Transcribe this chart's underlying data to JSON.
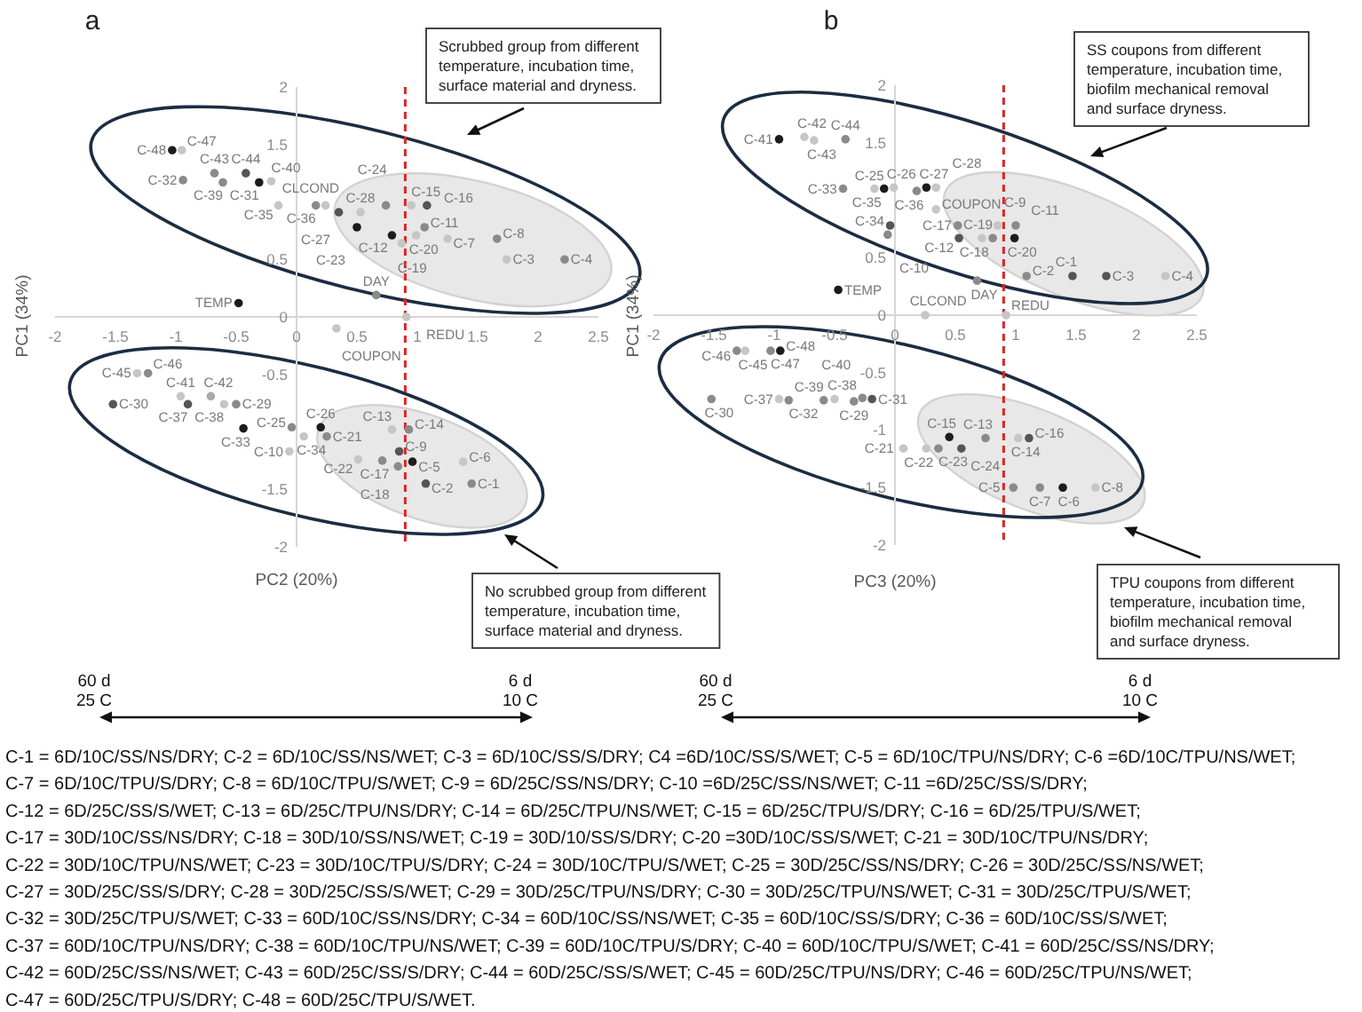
{
  "chart_data": [
    {
      "type": "scatter",
      "title": "a",
      "xlabel": "PC2 (20%)",
      "ylabel": "PC1 (34%)",
      "xlim": [
        -2,
        2.5
      ],
      "ylim": [
        -2,
        2
      ],
      "xticks": [
        -2,
        -1.5,
        -1,
        -0.5,
        0,
        0.5,
        1,
        1.5,
        2,
        2.5
      ],
      "yticks": [
        -2,
        -1.5,
        -0.5,
        0,
        0.5,
        1.5,
        2
      ],
      "marker": "circle",
      "ref_lines": [
        {
          "axis": "x",
          "value": 0.9,
          "color": "#e02424",
          "line_style": "dashed"
        }
      ],
      "annotations": [
        "Scrubbed group from different temperature, incubation time, surface material and dryness.",
        "No scrubbed group from different temperature, incubation time, surface material and dryness.",
        "60 d",
        "25 C",
        "6 d",
        "10 C"
      ],
      "series": [
        {
          "name": "C-48",
          "color": "#1c1c1c",
          "x": [
            -1.03
          ],
          "values": [
            1.45
          ]
        },
        {
          "name": "C-47",
          "color": "#c6c6c6",
          "x": [
            -0.95
          ],
          "values": [
            1.45
          ]
        },
        {
          "name": "C-32",
          "color": "#8a8a8a",
          "x": [
            -0.94
          ],
          "values": [
            1.19
          ]
        },
        {
          "name": "C-43",
          "color": "#8a8a8a",
          "x": [
            -0.68
          ],
          "values": [
            1.25
          ]
        },
        {
          "name": "C-39",
          "color": "#8a8a8a",
          "x": [
            -0.61
          ],
          "values": [
            1.17
          ]
        },
        {
          "name": "C-44",
          "color": "#555555",
          "x": [
            -0.42
          ],
          "values": [
            1.25
          ]
        },
        {
          "name": "C-31",
          "color": "#1c1c1c",
          "x": [
            -0.31
          ],
          "values": [
            1.17
          ]
        },
        {
          "name": "C-40",
          "color": "#c6c6c6",
          "x": [
            -0.21
          ],
          "values": [
            1.18
          ]
        },
        {
          "name": "C-35",
          "color": "#c6c6c6",
          "x": [
            -0.15
          ],
          "values": [
            0.97
          ]
        },
        {
          "name": "C-36",
          "color": "#8a8a8a",
          "x": [
            0.16
          ],
          "values": [
            0.97
          ]
        },
        {
          "name": "C-27",
          "color": "#555555",
          "x": [
            0.35
          ],
          "values": [
            0.91
          ]
        },
        {
          "name": "C-23",
          "color": "#1c1c1c",
          "x": [
            0.5
          ],
          "values": [
            0.78
          ]
        },
        {
          "name": "C-28",
          "color": "#c6c6c6",
          "x": [
            0.53
          ],
          "values": [
            0.91
          ]
        },
        {
          "name": "C-24",
          "color": "#8a8a8a",
          "x": [
            0.74
          ],
          "values": [
            0.97
          ]
        },
        {
          "name": "C-12",
          "color": "#1c1c1c",
          "x": [
            0.79
          ],
          "values": [
            0.71
          ]
        },
        {
          "name": "C-19",
          "color": "#c6c6c6",
          "x": [
            0.87
          ],
          "values": [
            0.64
          ]
        },
        {
          "name": "C-20",
          "color": "#c6c6c6",
          "x": [
            0.99
          ],
          "values": [
            0.71
          ]
        },
        {
          "name": "C-15",
          "color": "#c6c6c6",
          "x": [
            0.95
          ],
          "values": [
            0.97
          ]
        },
        {
          "name": "C-16",
          "color": "#555555",
          "x": [
            1.08
          ],
          "values": [
            0.97
          ]
        },
        {
          "name": "C-11",
          "color": "#8a8a8a",
          "x": [
            1.06
          ],
          "values": [
            0.78
          ]
        },
        {
          "name": "C-7",
          "color": "#c6c6c6",
          "x": [
            1.25
          ],
          "values": [
            0.68
          ]
        },
        {
          "name": "C-8",
          "color": "#8a8a8a",
          "x": [
            1.66
          ],
          "values": [
            0.68
          ]
        },
        {
          "name": "C-3",
          "color": "#c6c6c6",
          "x": [
            1.74
          ],
          "values": [
            0.5
          ]
        },
        {
          "name": "C-4",
          "color": "#8a8a8a",
          "x": [
            2.22
          ],
          "values": [
            0.5
          ]
        },
        {
          "name": "C-45",
          "color": "#c6c6c6",
          "x": [
            -1.32
          ],
          "values": [
            -0.49
          ]
        },
        {
          "name": "C-46",
          "color": "#8a8a8a",
          "x": [
            -1.23
          ],
          "values": [
            -0.49
          ]
        },
        {
          "name": "C-41",
          "color": "#c6c6c6",
          "x": [
            -0.96
          ],
          "values": [
            -0.69
          ]
        },
        {
          "name": "C-42",
          "color": "#a8a8a8",
          "x": [
            -0.71
          ],
          "values": [
            -0.69
          ]
        },
        {
          "name": "C-30",
          "color": "#555555",
          "x": [
            -1.52
          ],
          "values": [
            -0.76
          ]
        },
        {
          "name": "C-37",
          "color": "#555555",
          "x": [
            -0.9
          ],
          "values": [
            -0.76
          ]
        },
        {
          "name": "C-38",
          "color": "#c6c6c6",
          "x": [
            -0.6
          ],
          "values": [
            -0.76
          ]
        },
        {
          "name": "C-29",
          "color": "#8a8a8a",
          "x": [
            -0.5
          ],
          "values": [
            -0.76
          ]
        },
        {
          "name": "C-33",
          "color": "#1c1c1c",
          "x": [
            -0.44
          ],
          "values": [
            -0.97
          ]
        },
        {
          "name": "C-25",
          "color": "#8a8a8a",
          "x": [
            -0.04
          ],
          "values": [
            -0.96
          ]
        },
        {
          "name": "C-10",
          "color": "#c6c6c6",
          "x": [
            -0.06
          ],
          "values": [
            -1.17
          ]
        },
        {
          "name": "C-34",
          "color": "#c6c6c6",
          "x": [
            0.06
          ],
          "values": [
            -1.04
          ]
        },
        {
          "name": "C-26",
          "color": "#1c1c1c",
          "x": [
            0.2
          ],
          "values": [
            -0.96
          ]
        },
        {
          "name": "C-21",
          "color": "#8a8a8a",
          "x": [
            0.25
          ],
          "values": [
            -1.04
          ]
        },
        {
          "name": "C-22",
          "color": "#c6c6c6",
          "x": [
            0.51
          ],
          "values": [
            -1.24
          ]
        },
        {
          "name": "C-17",
          "color": "#8a8a8a",
          "x": [
            0.71
          ],
          "values": [
            -1.25
          ]
        },
        {
          "name": "C-13",
          "color": "#c6c6c6",
          "x": [
            0.79
          ],
          "values": [
            -0.98
          ]
        },
        {
          "name": "C-14",
          "color": "#8a8a8a",
          "x": [
            0.93
          ],
          "values": [
            -0.98
          ]
        },
        {
          "name": "C-9",
          "color": "#555555",
          "x": [
            0.85
          ],
          "values": [
            -1.17
          ]
        },
        {
          "name": "C-18",
          "color": "#8a8a8a",
          "x": [
            0.84
          ],
          "values": [
            -1.3
          ]
        },
        {
          "name": "C-5",
          "color": "#1c1c1c",
          "x": [
            0.96
          ],
          "values": [
            -1.26
          ]
        },
        {
          "name": "C-2",
          "color": "#555555",
          "x": [
            1.07
          ],
          "values": [
            -1.45
          ]
        },
        {
          "name": "C-6",
          "color": "#c6c6c6",
          "x": [
            1.38
          ],
          "values": [
            -1.26
          ]
        },
        {
          "name": "C-1",
          "color": "#8a8a8a",
          "x": [
            1.45
          ],
          "values": [
            -1.45
          ]
        },
        {
          "name": "TEMP",
          "color": "#1c1c1c",
          "x": [
            -0.48
          ],
          "values": [
            0.12
          ]
        },
        {
          "name": "CLCOND",
          "color": "#c6c6c6",
          "x": [
            0.24
          ],
          "values": [
            0.97
          ]
        },
        {
          "name": "DAY",
          "color": "#8a8a8a",
          "x": [
            0.66
          ],
          "values": [
            0.19
          ]
        },
        {
          "name": "REDU",
          "color": "#c6c6c6",
          "x": [
            0.91
          ],
          "values": [
            0
          ]
        },
        {
          "name": "COUPON",
          "color": "#c6c6c6",
          "x": [
            0.33
          ],
          "values": [
            -0.1
          ]
        }
      ]
    },
    {
      "type": "scatter",
      "title": "b",
      "xlabel": "PC3 (20%)",
      "ylabel": "PC1 (34%)",
      "xlim": [
        -2,
        2.5
      ],
      "ylim": [
        -2,
        2
      ],
      "xticks": [
        -2,
        -1.5,
        -1,
        -0.5,
        0,
        0.5,
        1,
        1.5,
        2,
        2.5
      ],
      "yticks": [
        -2,
        -1.5,
        -1,
        -0.5,
        0,
        0.5,
        1.5,
        2
      ],
      "marker": "circle",
      "ref_lines": [
        {
          "axis": "x",
          "value": 0.9,
          "color": "#e02424",
          "line_style": "dashed"
        }
      ],
      "annotations": [
        "SS coupons from different temperature, incubation time, biofilm mechanical removal and surface dryness.",
        "TPU coupons from different temperature, incubation time, biofilm mechanical removal and surface dryness.",
        "60 d",
        "25 C",
        "6 d",
        "10 C"
      ],
      "series": [
        {
          "name": "C-41",
          "color": "#1c1c1c",
          "x": [
            -0.96
          ],
          "values": [
            1.53
          ]
        },
        {
          "name": "C-42",
          "color": "#c6c6c6",
          "x": [
            -0.75
          ],
          "values": [
            1.55
          ]
        },
        {
          "name": "C-43",
          "color": "#c6c6c6",
          "x": [
            -0.67
          ],
          "values": [
            1.52
          ]
        },
        {
          "name": "C-44",
          "color": "#8a8a8a",
          "x": [
            -0.41
          ],
          "values": [
            1.53
          ]
        },
        {
          "name": "C-33",
          "color": "#8a8a8a",
          "x": [
            -0.43
          ],
          "values": [
            1.1
          ]
        },
        {
          "name": "C-35",
          "color": "#c6c6c6",
          "x": [
            -0.17
          ],
          "values": [
            1.1
          ]
        },
        {
          "name": "C-25",
          "color": "#1c1c1c",
          "x": [
            -0.09
          ],
          "values": [
            1.1
          ]
        },
        {
          "name": "C-26",
          "color": "#c6c6c6",
          "x": [
            -0.01
          ],
          "values": [
            1.11
          ]
        },
        {
          "name": "C-36",
          "color": "#8a8a8a",
          "x": [
            0.18
          ],
          "values": [
            1.08
          ]
        },
        {
          "name": "C-27",
          "color": "#1c1c1c",
          "x": [
            0.26
          ],
          "values": [
            1.11
          ]
        },
        {
          "name": "C-28",
          "color": "#c6c6c6",
          "x": [
            0.34
          ],
          "values": [
            1.11
          ]
        },
        {
          "name": "C-34",
          "color": "#555555",
          "x": [
            -0.04
          ],
          "values": [
            0.78
          ]
        },
        {
          "name": "C-10",
          "color": "#8a8a8a",
          "x": [
            -0.06
          ],
          "values": [
            0.7
          ]
        },
        {
          "name": "C-17",
          "color": "#8a8a8a",
          "x": [
            0.52
          ],
          "values": [
            0.78
          ]
        },
        {
          "name": "C-9",
          "color": "#c6c6c6",
          "x": [
            0.85
          ],
          "values": [
            0.78
          ]
        },
        {
          "name": "C-11",
          "color": "#8a8a8a",
          "x": [
            1.0
          ],
          "values": [
            0.78
          ]
        },
        {
          "name": "C-12",
          "color": "#555555",
          "x": [
            0.53
          ],
          "values": [
            0.67
          ]
        },
        {
          "name": "C-18",
          "color": "#c6c6c6",
          "x": [
            0.72
          ],
          "values": [
            0.67
          ]
        },
        {
          "name": "C-19",
          "color": "#8a8a8a",
          "x": [
            0.81
          ],
          "values": [
            0.67
          ]
        },
        {
          "name": "C-20",
          "color": "#1c1c1c",
          "x": [
            0.99
          ],
          "values": [
            0.67
          ]
        },
        {
          "name": "C-2",
          "color": "#8a8a8a",
          "x": [
            1.09
          ],
          "values": [
            0.34
          ]
        },
        {
          "name": "C-1",
          "color": "#555555",
          "x": [
            1.47
          ],
          "values": [
            0.34
          ]
        },
        {
          "name": "C-3",
          "color": "#555555",
          "x": [
            1.75
          ],
          "values": [
            0.34
          ]
        },
        {
          "name": "C-4",
          "color": "#c6c6c6",
          "x": [
            2.24
          ],
          "values": [
            0.34
          ]
        },
        {
          "name": "C-46",
          "color": "#8a8a8a",
          "x": [
            -1.31
          ],
          "values": [
            -0.31
          ]
        },
        {
          "name": "C-45",
          "color": "#c6c6c6",
          "x": [
            -1.24
          ],
          "values": [
            -0.31
          ]
        },
        {
          "name": "C-47",
          "color": "#8a8a8a",
          "x": [
            -1.03
          ],
          "values": [
            -0.31
          ]
        },
        {
          "name": "C-48",
          "color": "#1c1c1c",
          "x": [
            -0.95
          ],
          "values": [
            -0.31
          ]
        },
        {
          "name": "C-30",
          "color": "#8a8a8a",
          "x": [
            -1.52
          ],
          "values": [
            -0.73
          ]
        },
        {
          "name": "C-37",
          "color": "#c6c6c6",
          "x": [
            -0.96
          ],
          "values": [
            -0.73
          ]
        },
        {
          "name": "C-32",
          "color": "#8a8a8a",
          "x": [
            -0.88
          ],
          "values": [
            -0.74
          ]
        },
        {
          "name": "C-39",
          "color": "#8a8a8a",
          "x": [
            -0.59
          ],
          "values": [
            -0.74
          ]
        },
        {
          "name": "C-38",
          "color": "#c6c6c6",
          "x": [
            -0.5
          ],
          "values": [
            -0.73
          ]
        },
        {
          "name": "C-29",
          "color": "#8a8a8a",
          "x": [
            -0.34
          ],
          "values": [
            -0.75
          ]
        },
        {
          "name": "C-40",
          "color": "#8a8a8a",
          "x": [
            -0.27
          ],
          "values": [
            -0.72
          ]
        },
        {
          "name": "C-31",
          "color": "#555555",
          "x": [
            -0.19
          ],
          "values": [
            -0.73
          ]
        },
        {
          "name": "C-21",
          "color": "#c6c6c6",
          "x": [
            0.07
          ],
          "values": [
            -1.16
          ]
        },
        {
          "name": "C-22",
          "color": "#c6c6c6",
          "x": [
            0.26
          ],
          "values": [
            -1.16
          ]
        },
        {
          "name": "C-23",
          "color": "#8a8a8a",
          "x": [
            0.36
          ],
          "values": [
            -1.16
          ]
        },
        {
          "name": "C-15",
          "color": "#1c1c1c",
          "x": [
            0.45
          ],
          "values": [
            -1.06
          ]
        },
        {
          "name": "C-24",
          "color": "#555555",
          "x": [
            0.55
          ],
          "values": [
            -1.16
          ]
        },
        {
          "name": "C-13",
          "color": "#8a8a8a",
          "x": [
            0.75
          ],
          "values": [
            -1.07
          ]
        },
        {
          "name": "C-14",
          "color": "#c6c6c6",
          "x": [
            1.02
          ],
          "values": [
            -1.07
          ]
        },
        {
          "name": "C-16",
          "color": "#555555",
          "x": [
            1.11
          ],
          "values": [
            -1.07
          ]
        },
        {
          "name": "C-5",
          "color": "#8a8a8a",
          "x": [
            0.98
          ],
          "values": [
            -1.5
          ]
        },
        {
          "name": "C-7",
          "color": "#8a8a8a",
          "x": [
            1.2
          ],
          "values": [
            -1.5
          ]
        },
        {
          "name": "C-6",
          "color": "#1c1c1c",
          "x": [
            1.39
          ],
          "values": [
            -1.5
          ]
        },
        {
          "name": "C-8",
          "color": "#c6c6c6",
          "x": [
            1.66
          ],
          "values": [
            -1.5
          ]
        },
        {
          "name": "TEMP",
          "color": "#1c1c1c",
          "x": [
            -0.47
          ],
          "values": [
            0.22
          ]
        },
        {
          "name": "CLCOND",
          "color": "#c6c6c6",
          "x": [
            0.25
          ],
          "values": [
            0
          ]
        },
        {
          "name": "COUPON",
          "color": "#c6c6c6",
          "x": [
            0.34
          ],
          "values": [
            0.92
          ]
        },
        {
          "name": "DAY",
          "color": "#8a8a8a",
          "x": [
            0.68
          ],
          "values": [
            0.3
          ]
        },
        {
          "name": "REDU",
          "color": "#c6c6c6",
          "x": [
            0.92
          ],
          "values": [
            0
          ]
        }
      ]
    },
    {
      "type": "other",
      "annotations": [
        "C-1 = 6D/10C/SS/NS/DRY; C-2 = 6D/10C/SS/NS/WET; C-3 = 6D/10C/SS/S/DRY; C4 =6D/10C/SS/S/WET; C-5 = 6D/10C/TPU/NS/DRY; C-6 =6D/10C/TPU/NS/WET;",
        "C-7 = 6D/10C/TPU/S/DRY; C-8 = 6D/10C/TPU/S/WET; C-9 = 6D/25C/SS/NS/DRY; C-10 =6D/25C/SS/NS/WET; C-11 =6D/25C/SS/S/DRY;",
        "C-12 = 6D/25C/SS/S/WET; C-13 = 6D/25C/TPU/NS/DRY; C-14 = 6D/25C/TPU/NS/WET; C-15 = 6D/25C/TPU/S/DRY; C-16 = 6D/25/TPU/S/WET;",
        "C-17 = 30D/10C/SS/NS/DRY; C-18 = 30D/10/SS/NS/WET; C-19 = 30D/10/SS/S/DRY; C-20 =30D/10C/SS/S/WET; C-21 = 30D/10C/TPU/NS/DRY;",
        "C-22 = 30D/10C/TPU/NS/WET; C-23 = 30D/10C/TPU/S/DRY; C-24 = 30D/10C/TPU/S/WET; C-25 = 30D/25C/SS/NS/DRY; C-26 = 30D/25C/SS/NS/WET;",
        "C-27 = 30D/25C/SS/S/DRY; C-28 = 30D/25C/SS/S/WET; C-29 = 30D/25C/TPU/NS/DRY; C-30 = 30D/25C/TPU/NS/WET; C-31 = 30D/25C/TPU/S/WET;",
        "C-32 = 30D/25C/TPU/S/WET; C-33 = 60D/10C/SS/NS/DRY; C-34 = 60D/10C/SS/NS/WET; C-35 = 60D/10C/SS/S/DRY; C-36 = 60D/10C/SS/S/WET;",
        "C-37 = 60D/10C/TPU/NS/DRY; C-38 = 60D/10C/TPU/NS/WET; C-39 = 60D/10C/TPU/S/DRY; C-40 = 60D/10C/TPU/S/WET; C-41 = 60D/25C/SS/NS/DRY;",
        "C-42 = 60D/25C/SS/NS/WET; C-43 = 60D/25C/SS/S/DRY; C-44 = 60D/25C/SS/S/WET; C-45 = 60D/25C/TPU/NS/DRY; C-46 = 60D/25C/TPU/NS/WET;",
        "C-47 = 60D/25C/TPU/S/DRY; C-48 = 60D/25C/TPU/S/WET."
      ]
    }
  ]
}
